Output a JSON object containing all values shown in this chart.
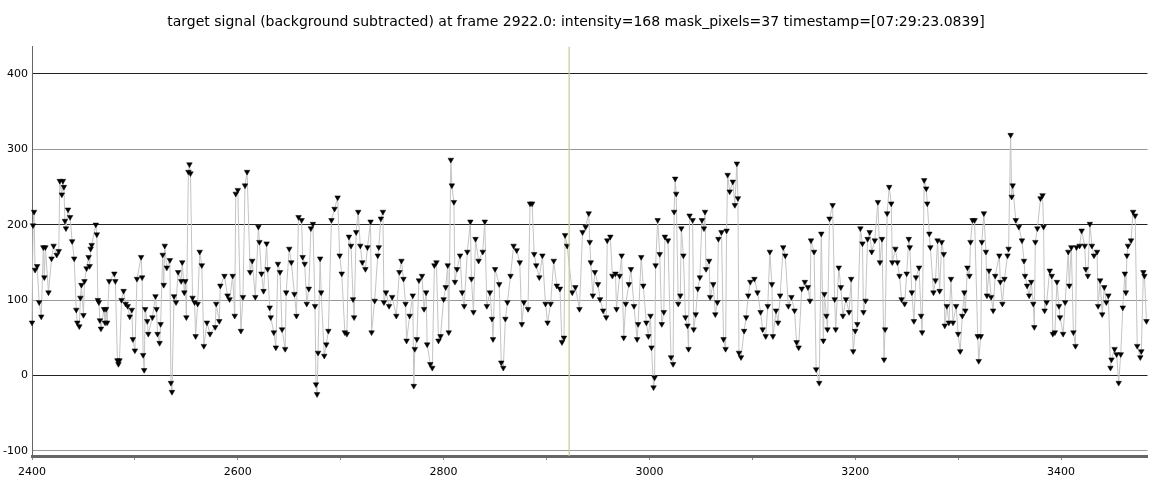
{
  "chart_data": {
    "type": "line",
    "title": "target signal (background subtracted) at frame 2922.0: intensity=168 mask_pixels=37 timestamp=[07:29:23.0839]",
    "x": [
      2400,
      2401,
      2402,
      2403,
      2405,
      2407,
      2409,
      2411,
      2412,
      2413,
      2416,
      2419,
      2421,
      2424,
      2426,
      2427,
      2429,
      2430,
      2431,
      2432,
      2433,
      2435,
      2437,
      2439,
      2441,
      2443,
      2444,
      2446,
      2447,
      2448,
      2450,
      2451,
      2453,
      2455,
      2456,
      2457,
      2458,
      2462,
      2463,
      2464,
      2465,
      2466,
      2467,
      2470,
      2471,
      2472,
      2473,
      2475,
      2480,
      2481,
      2483,
      2484,
      2485,
      2487,
      2489,
      2491,
      2493,
      2495,
      2497,
      2498,
      2500,
      2502,
      2506,
      2507,
      2508,
      2509,
      2510,
      2512,
      2513,
      2517,
      2520,
      2521,
      2522,
      2524,
      2525,
      2527,
      2528,
      2529,
      2531,
      2534,
      2535,
      2536,
      2538,
      2540,
      2542,
      2545,
      2546,
      2548,
      2549,
      2550,
      2552,
      2553,
      2554,
      2556,
      2558,
      2559,
      2561,
      2563,
      2565,
      2567,
      2570,
      2573,
      2578,
      2579,
      2582,
      2583,
      2587,
      2590,
      2592,
      2595,
      2597,
      2598,
      2600,
      2603,
      2605,
      2607,
      2609,
      2612,
      2614,
      2617,
      2620,
      2621,
      2623,
      2625,
      2628,
      2629,
      2631,
      2632,
      2635,
      2637,
      2639,
      2641,
      2643,
      2646,
      2647,
      2650,
      2652,
      2655,
      2657,
      2659,
      2662,
      2663,
      2665,
      2667,
      2669,
      2671,
      2673,
      2675,
      2676,
      2677,
      2678,
      2680,
      2681,
      2684,
      2686,
      2688,
      2691,
      2694,
      2697,
      2699,
      2701,
      2704,
      2706,
      2708,
      2710,
      2712,
      2713,
      2715,
      2717,
      2719,
      2721,
      2724,
      2726,
      2729,
      2730,
      2733,
      2736,
      2737,
      2739,
      2741,
      2742,
      2744,
      2747,
      2750,
      2754,
      2757,
      2759,
      2761,
      2763,
      2764,
      2767,
      2770,
      2771,
      2772,
      2774,
      2776,
      2779,
      2781,
      2783,
      2784,
      2787,
      2789,
      2791,
      2793,
      2795,
      2797,
      2800,
      2802,
      2804,
      2805,
      2807,
      2808,
      2810,
      2811,
      2813,
      2816,
      2818,
      2820,
      2823,
      2826,
      2827,
      2829,
      2831,
      2834,
      2838,
      2840,
      2842,
      2845,
      2847,
      2848,
      2850,
      2854,
      2856,
      2858,
      2860,
      2862,
      2865,
      2868,
      2871,
      2874,
      2876,
      2878,
      2882,
      2884,
      2886,
      2888,
      2890,
      2893,
      2896,
      2899,
      2901,
      2904,
      2907,
      2910,
      2913,
      2915,
      2917,
      2918,
      2920,
      2925,
      2928,
      2932,
      2935,
      2938,
      2941,
      2942,
      2943,
      2945,
      2947,
      2950,
      2952,
      2955,
      2958,
      2959,
      2962,
      2964,
      2967,
      2968,
      2971,
      2973,
      2975,
      2977,
      2980,
      2982,
      2985,
      2988,
      2989,
      2992,
      2994,
      2997,
      2999,
      3001,
      3002,
      3004,
      3005,
      3006,
      3008,
      3010,
      3012,
      3014,
      3015,
      3018,
      3021,
      3023,
      3024,
      3025,
      3026,
      3028,
      3030,
      3031,
      3033,
      3035,
      3037,
      3038,
      3039,
      3042,
      3043,
      3045,
      3047,
      3049,
      3051,
      3053,
      3054,
      3055,
      3058,
      3059,
      3062,
      3064,
      3066,
      3067,
      3070,
      3072,
      3074,
      3075,
      3076,
      3078,
      3081,
      3083,
      3085,
      3086,
      3087,
      3089,
      3092,
      3094,
      3096,
      3098,
      3102,
      3105,
      3108,
      3110,
      3113,
      3115,
      3117,
      3119,
      3120,
      3123,
      3125,
      3127,
      3130,
      3132,
      3135,
      3138,
      3141,
      3143,
      3145,
      3148,
      3151,
      3154,
      3156,
      3157,
      3160,
      3162,
      3165,
      3167,
      3169,
      3170,
      3172,
      3173,
      3175,
      3178,
      3180,
      3181,
      3184,
      3186,
      3188,
      3191,
      3194,
      3196,
      3198,
      3200,
      3202,
      3205,
      3207,
      3208,
      3210,
      3212,
      3214,
      3216,
      3219,
      3222,
      3224,
      3226,
      3228,
      3229,
      3231,
      3233,
      3235,
      3236,
      3239,
      3241,
      3243,
      3245,
      3248,
      3250,
      3252,
      3253,
      3255,
      3257,
      3259,
      3262,
      3264,
      3265,
      3267,
      3269,
      3270,
      3272,
      3273,
      3276,
      3278,
      3280,
      3282,
      3284,
      3286,
      3287,
      3289,
      3291,
      3293,
      3295,
      3298,
      3300,
      3302,
      3304,
      3306,
      3307,
      3309,
      3311,
      3312,
      3314,
      3316,
      3319,
      3320,
      3322,
      3323,
      3325,
      3327,
      3328,
      3330,
      3332,
      3334,
      3336,
      3340,
      3341,
      3343,
      3345,
      3348,
      3349,
      3351,
      3352,
      3353,
      3356,
      3359,
      3362,
      3364,
      3365,
      3367,
      3369,
      3371,
      3373,
      3374,
      3375,
      3377,
      3380,
      3382,
      3383,
      3384,
      3386,
      3389,
      3391,
      3392,
      3394,
      3396,
      3398,
      3399,
      3402,
      3404,
      3407,
      3408,
      3410,
      3412,
      3414,
      3415,
      3418,
      3420,
      3423,
      3424,
      3426,
      3428,
      3430,
      3432,
      3435,
      3436,
      3438,
      3440,
      3442,
      3444,
      3446,
      3448,
      3449,
      3452,
      3454,
      3456,
      3458,
      3460,
      3462,
      3463,
      3464,
      3465,
      3468,
      3470,
      3472,
      3474,
      3477,
      3478,
      3480,
      3481,
      3483
    ],
    "values": [
      70,
      199,
      217,
      140,
      145,
      97,
      78,
      170,
      130,
      170,
      110,
      155,
      172,
      160,
      165,
      258,
      240,
      258,
      250,
      205,
      195,
      220,
      210,
      178,
      155,
      87,
      70,
      65,
      103,
      120,
      80,
      125,
      142,
      157,
      145,
      168,
      173,
      200,
      187,
      100,
      97,
      73,
      62,
      88,
      70,
      88,
      70,
      125,
      135,
      125,
      20,
      15,
      20,
      100,
      112,
      95,
      92,
      78,
      87,
      48,
      33,
      128,
      157,
      130,
      27,
      7,
      88,
      72,
      55,
      77,
      105,
      88,
      55,
      43,
      68,
      160,
      120,
      172,
      143,
      153,
      -10,
      -22,
      105,
      97,
      137,
      125,
      150,
      110,
      125,
      77,
      270,
      280,
      268,
      103,
      97,
      52,
      95,
      164,
      146,
      39,
      70,
      55,
      64,
      95,
      72,
      119,
      132,
      106,
      101,
      132,
      79,
      241,
      246,
      59,
      104,
      252,
      270,
      137,
      152,
      104,
      197,
      177,
      135,
      112,
      175,
      141,
      90,
      77,
      57,
      37,
      148,
      137,
      61,
      35,
      110,
      168,
      150,
      108,
      79,
      210,
      206,
      157,
      148,
      95,
      115,
      195,
      201,
      92,
      -12,
      -25,
      30,
      155,
      110,
      26,
      41,
      59,
      206,
      221,
      236,
      159,
      135,
      57,
      55,
      184,
      172,
      101,
      77,
      190,
      217,
      172,
      150,
      141,
      170,
      204,
      57,
      99,
      159,
      170,
      208,
      217,
      97,
      110,
      92,
      104,
      79,
      137,
      152,
      128,
      95,
      46,
      79,
      106,
      -14,
      35,
      48,
      126,
      132,
      88,
      110,
      41,
      15,
      10,
      146,
      150,
      46,
      52,
      101,
      117,
      146,
      57,
      286,
      252,
      230,
      124,
      141,
      159,
      110,
      92,
      164,
      204,
      128,
      84,
      181,
      152,
      164,
      204,
      92,
      110,
      75,
      48,
      141,
      121,
      17,
      10,
      75,
      97,
      132,
      172,
      166,
      150,
      68,
      97,
      88,
      228,
      228,
      161,
      146,
      130,
      159,
      95,
      70,
      95,
      152,
      119,
      115,
      44,
      50,
      186,
      172,
      110,
      117,
      88,
      190,
      197,
      215,
      177,
      150,
      106,
      137,
      121,
      101,
      86,
      77,
      179,
      184,
      132,
      135,
      88,
      132,
      159,
      50,
      95,
      121,
      141,
      92,
      48,
      68,
      157,
      119,
      70,
      52,
      79,
      37,
      -16,
      -3,
      146,
      206,
      161,
      68,
      84,
      184,
      179,
      24,
      15,
      217,
      261,
      241,
      95,
      106,
      195,
      159,
      77,
      66,
      35,
      212,
      206,
      61,
      81,
      115,
      130,
      206,
      195,
      217,
      141,
      152,
      104,
      121,
      81,
      97,
      181,
      190,
      48,
      35,
      192,
      266,
      244,
      257,
      226,
      281,
      235,
      30,
      24,
      59,
      77,
      106,
      124,
      128,
      110,
      84,
      61,
      52,
      92,
      164,
      121,
      52,
      86,
      70,
      106,
      170,
      159,
      92,
      104,
      86,
      44,
      37,
      115,
      124,
      117,
      99,
      179,
      164,
      8,
      -10,
      188,
      46,
      108,
      79,
      61,
      208,
      226,
      101,
      61,
      143,
      117,
      79,
      101,
      84,
      128,
      32,
      59,
      68,
      195,
      175,
      84,
      99,
      181,
      190,
      164,
      179,
      230,
      150,
      181,
      21,
      61,
      215,
      250,
      228,
      150,
      168,
      150,
      132,
      101,
      95,
      135,
      181,
      170,
      110,
      72,
      130,
      143,
      79,
      57,
      259,
      248,
      228,
      188,
      170,
      110,
      126,
      179,
      112,
      177,
      161,
      66,
      92,
      70,
      128,
      70,
      92,
      55,
      32,
      79,
      110,
      86,
      143,
      132,
      177,
      206,
      206,
      52,
      19,
      52,
      177,
      215,
      164,
      106,
      139,
      104,
      86,
      132,
      159,
      124,
      95,
      128,
      159,
      168,
      319,
      237,
      252,
      206,
      197,
      179,
      152,
      132,
      119,
      106,
      124,
      95,
      64,
      177,
      195,
      235,
      239,
      197,
      86,
      97,
      139,
      132,
      55,
      57,
      124,
      92,
      77,
      55,
      97,
      164,
      119,
      170,
      57,
      39,
      170,
      172,
      192,
      172,
      141,
      132,
      201,
      172,
      159,
      164,
      92,
      126,
      81,
      117,
      97,
      106,
      10,
      21,
      35,
      28,
      -10,
      28,
      90,
      135,
      110,
      159,
      172,
      179,
      217,
      212,
      39,
      24,
      32,
      137,
      132,
      72
    ],
    "color": "#000000",
    "marker": "triangle",
    "line_style": "solid",
    "xlim": [
      2400,
      3484
    ],
    "xticks": [
      2400,
      {
        "value": 2500,
        "label": null
      },
      2600,
      {
        "value": 2700,
        "label": null
      },
      2800,
      {
        "value": 2900,
        "label": null
      },
      3000,
      {
        "value": 3100,
        "label": null
      },
      3200,
      {
        "value": 3300,
        "label": null
      },
      3400
    ],
    "ylim": [
      -107,
      436
    ],
    "yticks": [
      -100,
      0,
      100,
      200,
      300,
      400
    ],
    "grid": "y",
    "legend": false,
    "ref_lines": [
      {
        "axis": "x",
        "value": 2922,
        "color": "#c8c88c"
      }
    ]
  }
}
